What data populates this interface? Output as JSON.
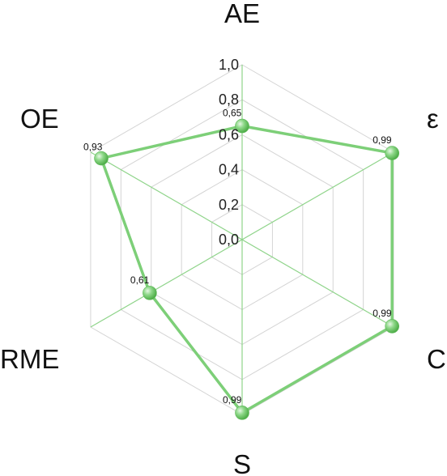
{
  "chart_data": {
    "type": "radar",
    "axes": [
      "AE",
      "ε",
      "C",
      "S",
      "RME",
      "OE"
    ],
    "values": [
      0.65,
      0.99,
      0.99,
      0.99,
      0.61,
      0.93
    ],
    "value_labels": [
      "0,65",
      "0,99",
      "0,99",
      "0,99",
      "0,61",
      "0,93"
    ],
    "rlim": [
      0.0,
      1.0
    ],
    "ticks": [
      "0,0",
      "0,2",
      "0,4",
      "0,6",
      "0,8",
      "1,0"
    ],
    "grid": true,
    "colors": {
      "series": "#7dcf78",
      "marker": "#6cc566",
      "axis": "#8fd48a",
      "grid": "#d4d4d4"
    }
  }
}
